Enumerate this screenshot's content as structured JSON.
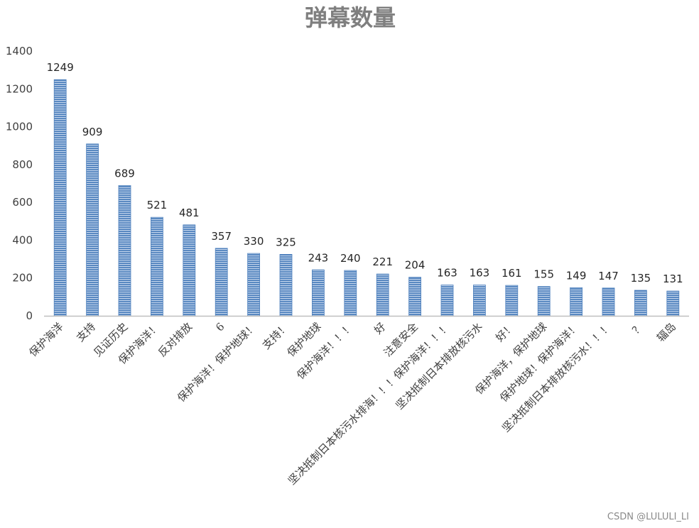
{
  "chart_data": {
    "type": "bar",
    "title": "弹幕数量",
    "categories": [
      "保护海洋",
      "支持",
      "见证历史",
      "保护海洋！",
      "反对排放",
      "6",
      "保护海洋！保护地球！",
      "支持！",
      "保护地球",
      "保护海洋！！！",
      "好",
      "注意安全",
      "坚决抵制日本核污水排海！！！保护海洋！！！",
      "坚决抵制日本排放核污水",
      "好！",
      "保护海洋，保护地球",
      "保护地球！保护海洋！",
      "坚决抵制日本排放核污水！！！",
      "？",
      "辐岛"
    ],
    "values": [
      1249,
      909,
      689,
      521,
      481,
      357,
      330,
      325,
      243,
      240,
      221,
      204,
      163,
      163,
      161,
      155,
      149,
      147,
      135,
      131
    ],
    "ylim": [
      0,
      1400
    ],
    "yticks": [
      0,
      200,
      400,
      600,
      800,
      1000,
      1200,
      1400
    ],
    "grid": false,
    "legend": "none",
    "bar_color": "#4f81bd",
    "bar_stripe_color": "#c5d6ed"
  },
  "watermark": "CSDN @LULULI_LI"
}
